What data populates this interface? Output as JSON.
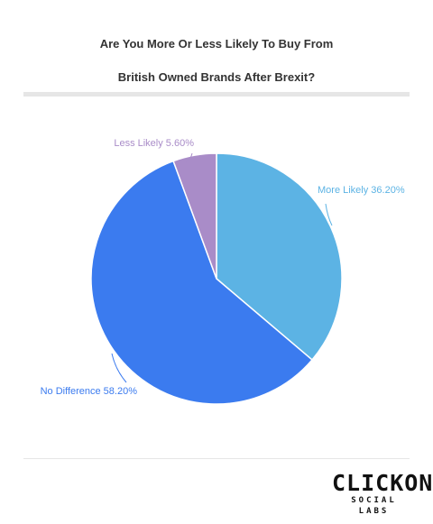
{
  "chart_data": {
    "type": "pie",
    "title_lines": [
      "Are You More Or Less Likely To Buy From",
      "British Owned Brands After Brexit?"
    ],
    "slices": [
      {
        "label": "More Likely",
        "value": 36.2,
        "display": "More Likely 36.20%",
        "color": "#5cb3e4"
      },
      {
        "label": "No Difference",
        "value": 58.2,
        "display": "No Difference 58.20%",
        "color": "#3b7bef"
      },
      {
        "label": "Less Likely",
        "value": 5.6,
        "display": "Less Likely 5.60%",
        "color": "#a98cc8"
      }
    ],
    "start": "12 o'clock, clockwise"
  },
  "brand": {
    "main": "CLICKON",
    "sub": "SOCIAL LABS"
  }
}
